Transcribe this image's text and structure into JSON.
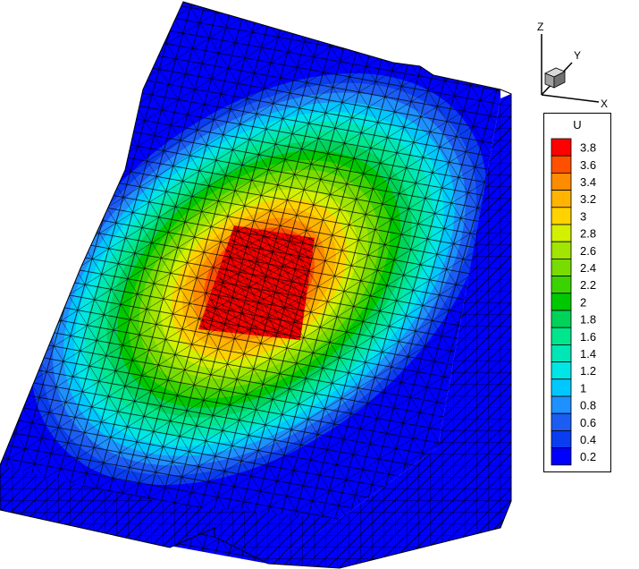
{
  "chart_data": {
    "type": "heatmap",
    "title": "",
    "variable": "U",
    "colorbar": {
      "levels": [
        0.2,
        0.4,
        0.6,
        0.8,
        1,
        1.2,
        1.4,
        1.6,
        1.8,
        2,
        2.2,
        2.4,
        2.6,
        2.8,
        3,
        3.2,
        3.4,
        3.6,
        3.8
      ],
      "tick_labels": [
        "0.2",
        "0.4",
        "0.6",
        "0.8",
        "1",
        "1.2",
        "1.4",
        "1.6",
        "1.8",
        "2",
        "2.2",
        "2.4",
        "2.6",
        "2.8",
        "3",
        "3.2",
        "3.4",
        "3.6",
        "3.8"
      ],
      "colors": [
        "#0000ff",
        "#0a3cf0",
        "#1c5cf2",
        "#1e90ff",
        "#00c8ff",
        "#00e6e6",
        "#00e6b4",
        "#00e68c",
        "#00d25a",
        "#00c800",
        "#3cd200",
        "#78dc00",
        "#a0e600",
        "#d2f000",
        "#ffd200",
        "#ffb400",
        "#ff8c00",
        "#ff5000",
        "#ff0000"
      ]
    },
    "peak_value": 3.8,
    "axes": {
      "x": "X",
      "y": "Y",
      "z": "Z"
    },
    "mesh": "tetrahedral",
    "legend_placement": "right"
  }
}
